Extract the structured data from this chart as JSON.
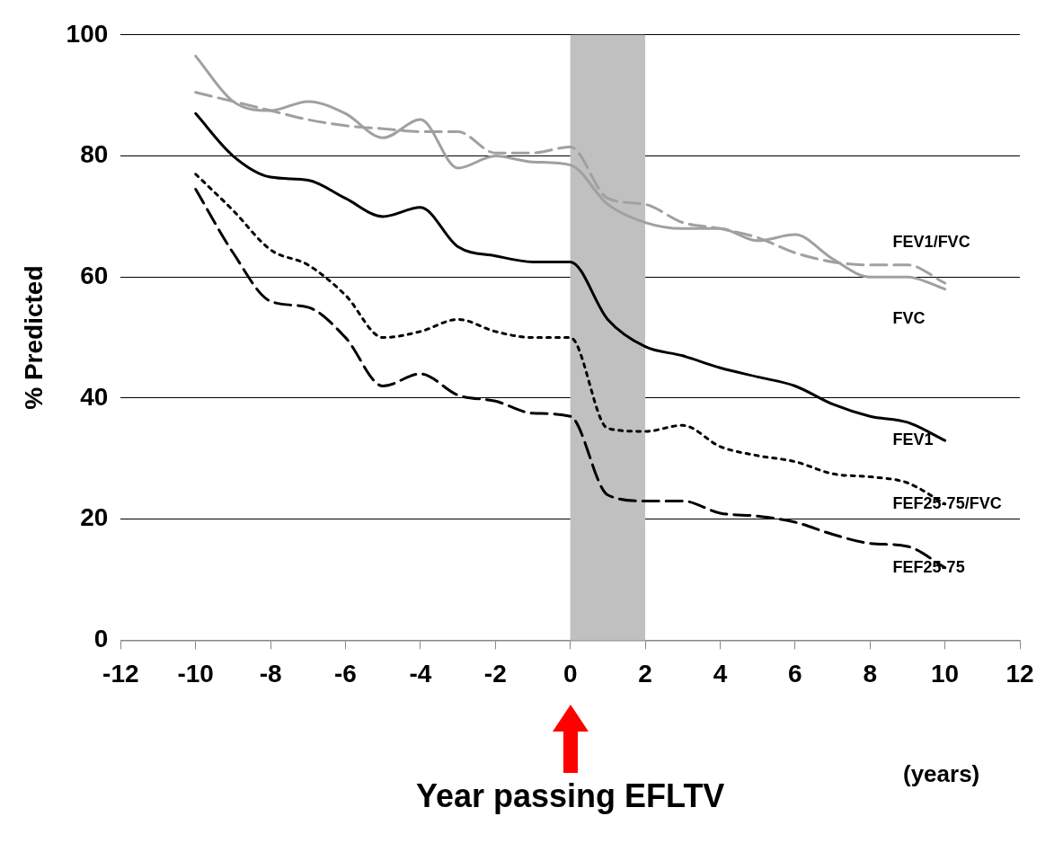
{
  "chart_data": {
    "type": "line",
    "ylabel": "% Predicted",
    "xlabel": "(years)",
    "x": [
      -10,
      -9,
      -8,
      -7,
      -6,
      -5,
      -4,
      -3,
      -2,
      -1,
      0,
      1,
      2,
      3,
      4,
      5,
      6,
      7,
      8,
      9,
      10
    ],
    "series": [
      {
        "name": "FEV1/FVC",
        "color": "#a0a0a0",
        "line_style": "dashed",
        "values": [
          90.5,
          89,
          87.5,
          86,
          85,
          84.5,
          84,
          84,
          80.5,
          80.5,
          81.5,
          73,
          72,
          69,
          68,
          66.5,
          64,
          62.5,
          62,
          62,
          59
        ]
      },
      {
        "name": "FVC",
        "color": "#a0a0a0",
        "line_style": "solid",
        "values": [
          96.5,
          89,
          87.5,
          89,
          87,
          83,
          86,
          78,
          80,
          79,
          78.5,
          72,
          69,
          68,
          68,
          66,
          67,
          63,
          60,
          60,
          58
        ]
      },
      {
        "name": "FEV1",
        "color": "#000000",
        "line_style": "solid",
        "values": [
          87,
          80,
          76.5,
          76,
          73,
          70,
          71.5,
          65,
          63.5,
          62.5,
          62.5,
          53,
          48.5,
          47,
          45,
          43.5,
          42,
          39,
          37,
          36,
          33
        ]
      },
      {
        "name": "FEF25-75/FVC",
        "color": "#000000",
        "line_style": "dotted",
        "values": [
          77,
          71,
          64.5,
          62,
          57,
          50,
          51,
          53,
          51,
          50,
          50,
          35,
          34.5,
          35.5,
          32,
          30.5,
          29.5,
          27.5,
          27,
          26,
          22.5
        ]
      },
      {
        "name": "FEF25-75",
        "color": "#000000",
        "line_style": "dashed",
        "values": [
          74.5,
          64,
          56,
          55,
          50,
          42,
          44,
          40.5,
          39.5,
          37.5,
          37,
          24,
          23,
          23,
          21,
          20.5,
          19.5,
          17.5,
          16,
          15.5,
          12
        ]
      }
    ],
    "xlim": [
      -12,
      12
    ],
    "xticks": [
      -12,
      -10,
      -8,
      -6,
      -4,
      -2,
      0,
      2,
      4,
      6,
      8,
      10,
      12
    ],
    "ylim": [
      0,
      100
    ],
    "yticks": [
      0,
      20,
      40,
      60,
      80,
      100
    ],
    "grid": "y",
    "legend": false,
    "bands": [
      {
        "axis": "x",
        "from": 0,
        "to": 2,
        "color": "#c0c0c0"
      }
    ],
    "annotations": [
      "Year passing EFLTV"
    ]
  }
}
